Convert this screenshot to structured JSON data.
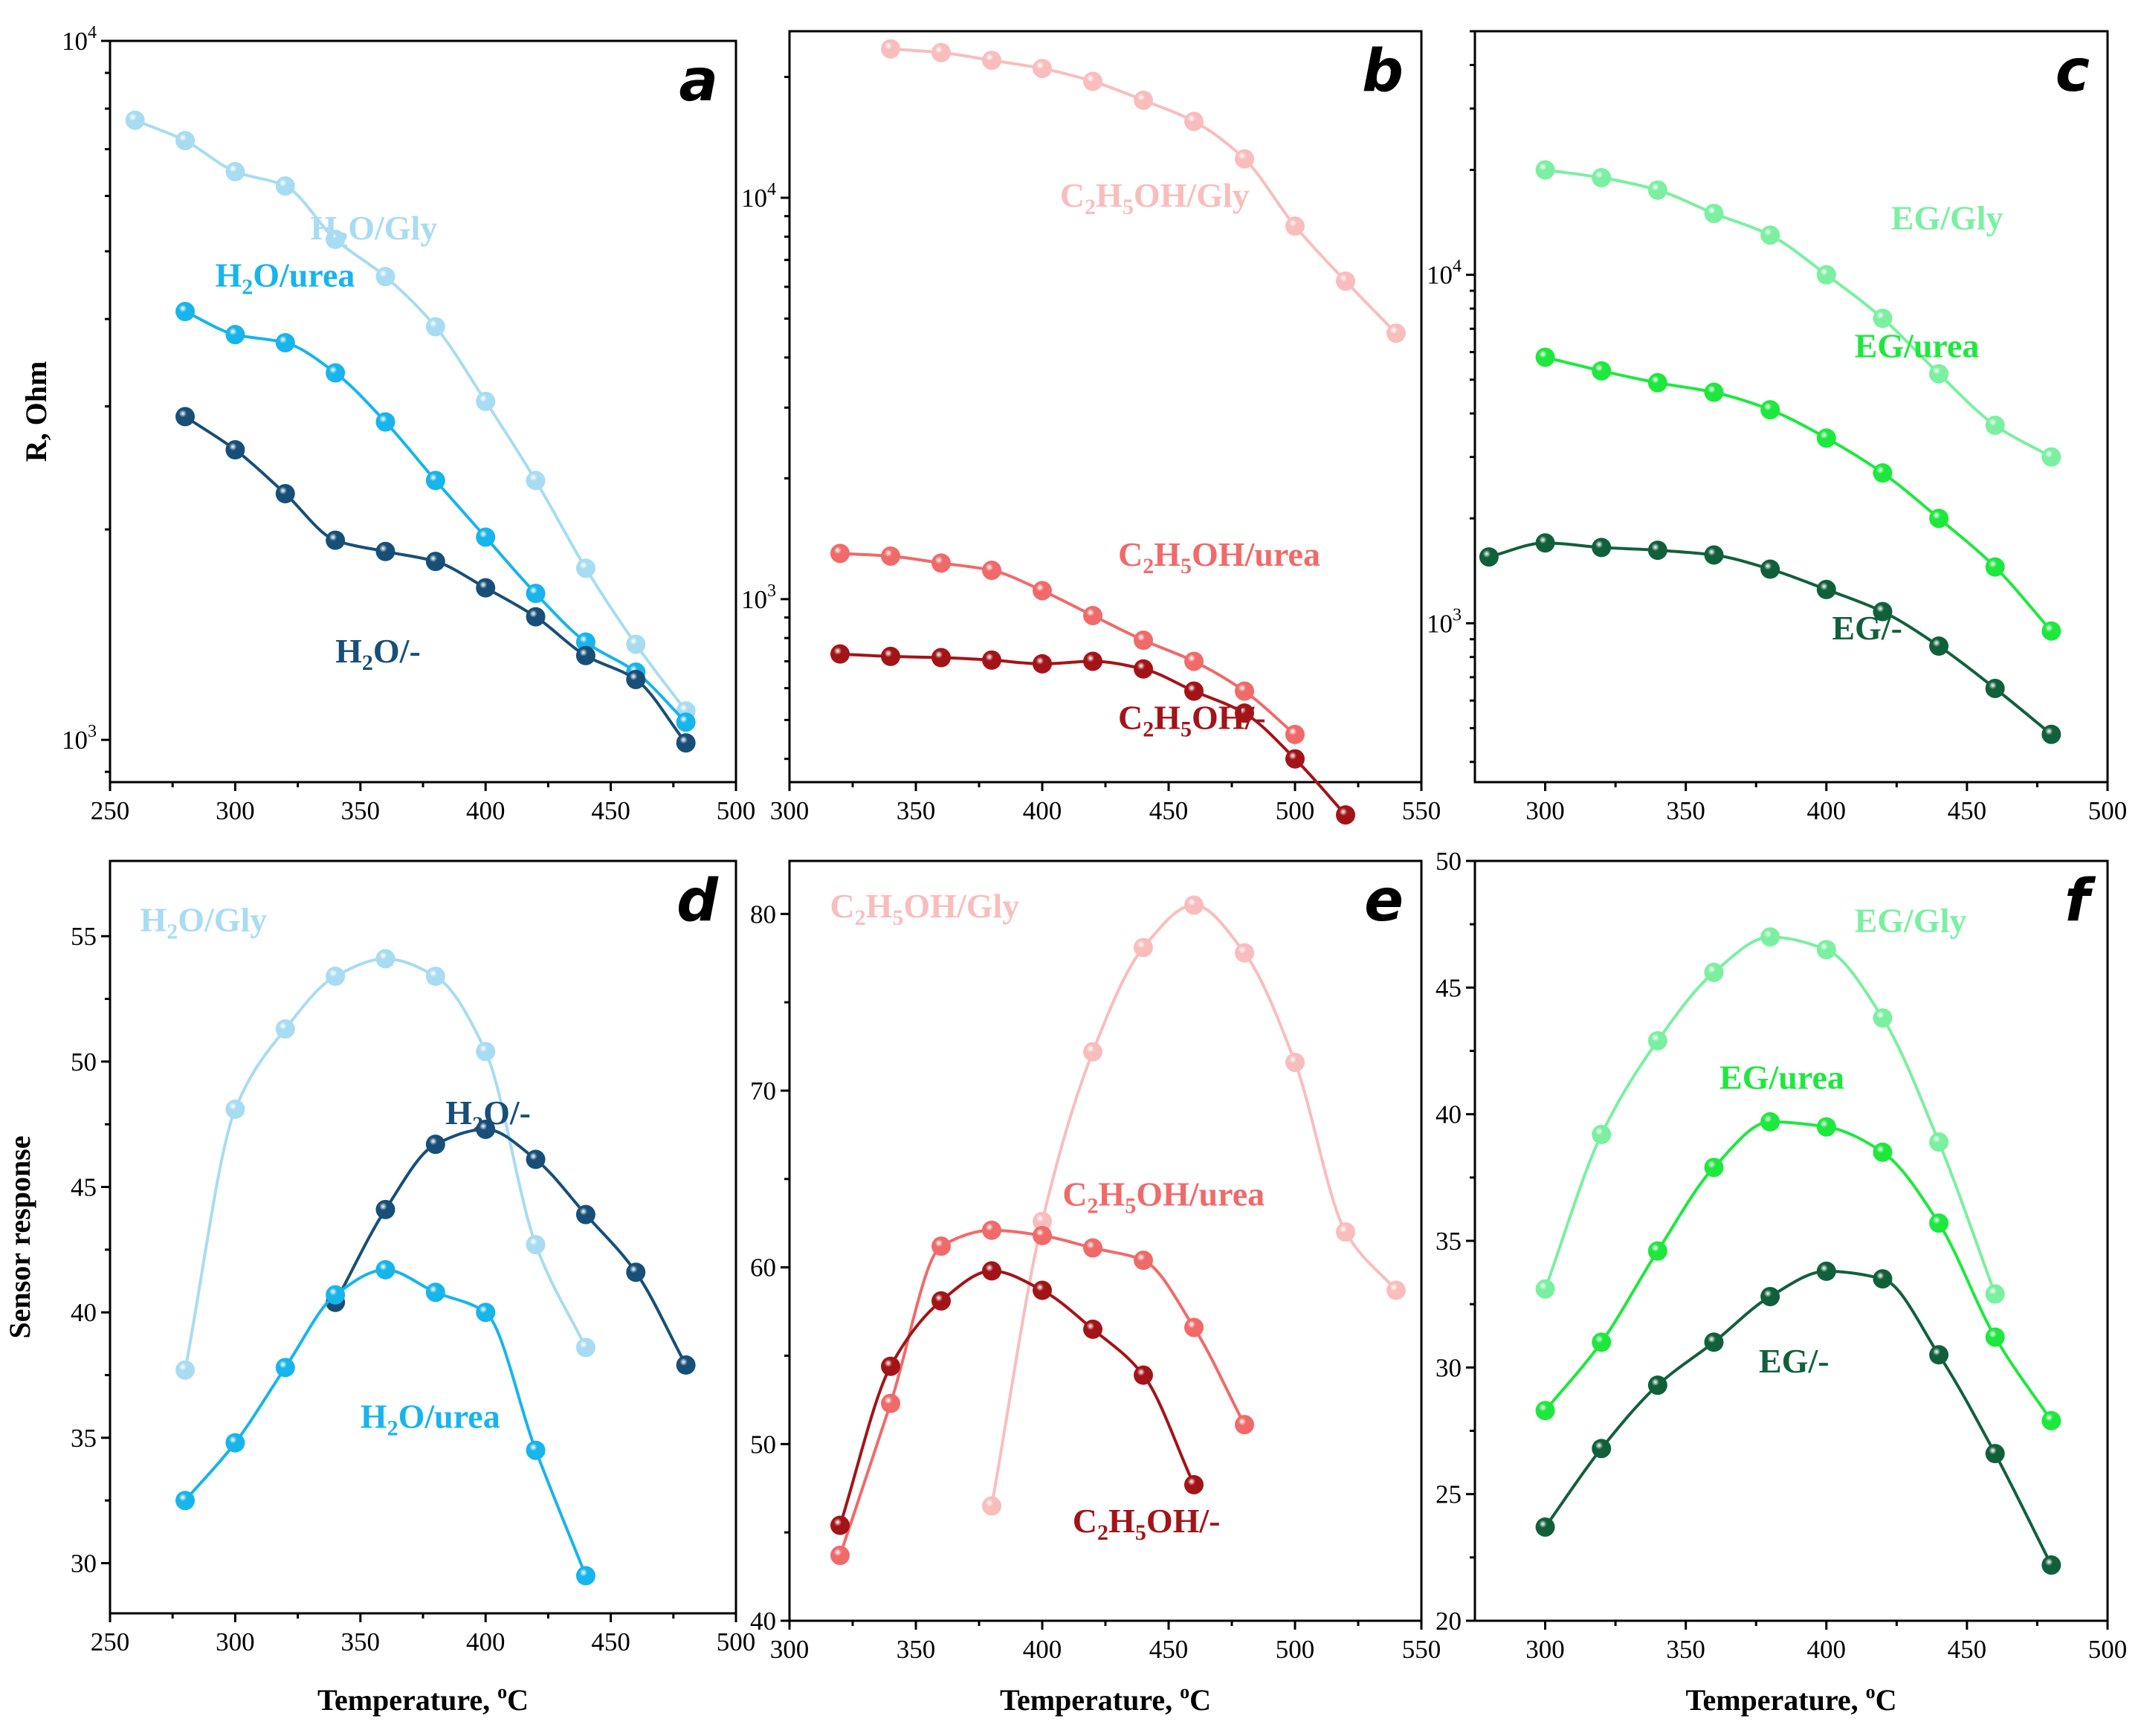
{
  "chart_data": [
    {
      "panel": "a",
      "type": "line",
      "yscale": "log",
      "xlim": [
        250,
        500
      ],
      "ylim": [
        870,
        10000
      ],
      "xticks": [
        "250",
        "300",
        "350",
        "400",
        "450",
        "500"
      ],
      "ytick_labels": [
        {
          "value": 1000,
          "base": "10",
          "exp": "3"
        },
        {
          "value": 10000,
          "base": "10",
          "exp": "4"
        }
      ],
      "xlabel": "",
      "ylabel": "R, Ohm",
      "series": [
        {
          "name": "H2O/Gly",
          "label": [
            {
              "t": "H"
            },
            {
              "t": "2",
              "sub": true
            },
            {
              "t": "O/Gly"
            }
          ],
          "color": "#a8dcf2",
          "label_at": [
            330,
            5200
          ],
          "x": [
            260,
            280,
            300,
            320,
            340,
            360,
            380,
            400,
            420,
            440,
            460,
            480
          ],
          "y": [
            7700,
            7200,
            6500,
            6200,
            5200,
            4600,
            3900,
            3050,
            2350,
            1760,
            1370,
            1100
          ]
        },
        {
          "name": "H2O/urea",
          "label": [
            {
              "t": "H"
            },
            {
              "t": "2",
              "sub": true
            },
            {
              "t": "O/urea"
            }
          ],
          "color": "#18b4ec",
          "label_at": [
            292,
            4450
          ],
          "x": [
            280,
            300,
            320,
            340,
            360,
            380,
            400,
            420,
            440,
            460,
            480
          ],
          "y": [
            4100,
            3800,
            3700,
            3350,
            2850,
            2350,
            1950,
            1620,
            1380,
            1250,
            1060
          ]
        },
        {
          "name": "H2O/-",
          "label": [
            {
              "t": "H"
            },
            {
              "t": "2",
              "sub": true
            },
            {
              "t": "O/-"
            }
          ],
          "color": "#174f78",
          "label_at": [
            340,
            1290
          ],
          "x": [
            280,
            300,
            320,
            340,
            360,
            380,
            400,
            420,
            440,
            460,
            480
          ],
          "y": [
            2900,
            2600,
            2250,
            1930,
            1860,
            1800,
            1650,
            1500,
            1320,
            1220,
            990
          ]
        }
      ]
    },
    {
      "panel": "b",
      "type": "line",
      "yscale": "log",
      "xlim": [
        300,
        550
      ],
      "ylim": [
        350,
        26000
      ],
      "xticks": [
        "300",
        "350",
        "400",
        "450",
        "500",
        "550"
      ],
      "ytick_labels": [
        {
          "value": 1000,
          "base": "10",
          "exp": "3"
        },
        {
          "value": 10000,
          "base": "10",
          "exp": "4"
        }
      ],
      "xlabel": "",
      "ylabel": "",
      "series": [
        {
          "name": "C2H5OH/Gly",
          "label": [
            {
              "t": "C"
            },
            {
              "t": "2",
              "sub": true
            },
            {
              "t": "H"
            },
            {
              "t": "5",
              "sub": true
            },
            {
              "t": "OH/Gly"
            }
          ],
          "color": "#f9bdbd",
          "label_at": [
            407,
            9500
          ],
          "x": [
            340,
            360,
            380,
            400,
            420,
            440,
            460,
            480,
            500,
            520,
            540
          ],
          "y": [
            23500,
            23000,
            22000,
            21000,
            19500,
            17500,
            15500,
            12500,
            8500,
            6200,
            4600
          ]
        },
        {
          "name": "C2H5OH/urea",
          "label": [
            {
              "t": "C"
            },
            {
              "t": "2",
              "sub": true
            },
            {
              "t": "H"
            },
            {
              "t": "5",
              "sub": true
            },
            {
              "t": "OH/urea"
            }
          ],
          "color": "#f06a6a",
          "label_at": [
            430,
            1210
          ],
          "x": [
            320,
            340,
            360,
            380,
            400,
            420,
            440,
            460,
            480,
            500
          ],
          "y": [
            1300,
            1280,
            1230,
            1180,
            1050,
            910,
            790,
            700,
            590,
            460
          ]
        },
        {
          "name": "C2H5OH/-",
          "label": [
            {
              "t": "C"
            },
            {
              "t": "2",
              "sub": true
            },
            {
              "t": "H"
            },
            {
              "t": "5",
              "sub": true
            },
            {
              "t": "OH/-"
            }
          ],
          "color": "#a31418",
          "label_at": [
            430,
            475
          ],
          "x": [
            320,
            340,
            360,
            380,
            400,
            420,
            440,
            460,
            480,
            500,
            520
          ],
          "y": [
            730,
            720,
            715,
            705,
            690,
            700,
            670,
            590,
            520,
            400,
            290
          ]
        }
      ]
    },
    {
      "panel": "c",
      "type": "line",
      "yscale": "log",
      "xlim": [
        275,
        500
      ],
      "ylim": [
        350,
        50000
      ],
      "xticks": [
        "300",
        "350",
        "400",
        "450",
        "500"
      ],
      "ytick_labels": [
        {
          "value": 1000,
          "base": "10",
          "exp": "3"
        },
        {
          "value": 10000,
          "base": "10",
          "exp": "4"
        }
      ],
      "xlabel": "",
      "ylabel": "",
      "series": [
        {
          "name": "EG/Gly",
          "label": [
            {
              "t": "EG/Gly"
            }
          ],
          "color": "#7af0a0",
          "label_at": [
            423,
            13500
          ],
          "x": [
            300,
            320,
            340,
            360,
            380,
            400,
            420,
            440,
            460,
            480
          ],
          "y": [
            20000,
            19000,
            17500,
            15000,
            13000,
            10000,
            7500,
            5200,
            3700,
            3000
          ]
        },
        {
          "name": "EG/urea",
          "label": [
            {
              "t": "EG/urea"
            }
          ],
          "color": "#1ee83e",
          "label_at": [
            410,
            5800
          ],
          "x": [
            300,
            320,
            340,
            360,
            380,
            400,
            420,
            440,
            460,
            480
          ],
          "y": [
            5800,
            5300,
            4900,
            4600,
            4100,
            3400,
            2700,
            2000,
            1450,
            950
          ]
        },
        {
          "name": "EG/-",
          "label": [
            {
              "t": "EG/-"
            }
          ],
          "color": "#11603c",
          "label_at": [
            402,
            900
          ],
          "x": [
            280,
            300,
            320,
            340,
            360,
            380,
            400,
            420,
            440,
            460,
            480
          ],
          "y": [
            1550,
            1700,
            1650,
            1620,
            1570,
            1430,
            1250,
            1080,
            860,
            650,
            480
          ]
        }
      ]
    },
    {
      "panel": "d",
      "type": "line",
      "yscale": "linear",
      "xlim": [
        250,
        500
      ],
      "ylim": [
        28,
        58
      ],
      "xticks": [
        "250",
        "300",
        "350",
        "400",
        "450",
        "500"
      ],
      "yticks": [
        "30",
        "35",
        "40",
        "45",
        "50",
        "55"
      ],
      "xlabel": "Temperature, °C",
      "ylabel": "Sensor response",
      "series": [
        {
          "name": "H2O/Gly",
          "label": [
            {
              "t": "H"
            },
            {
              "t": "2",
              "sub": true
            },
            {
              "t": "O/Gly"
            }
          ],
          "color": "#a8dcf2",
          "label_at": [
            262,
            55.2
          ],
          "x": [
            280,
            300,
            320,
            340,
            360,
            380,
            400,
            420,
            440
          ],
          "y": [
            37.7,
            48.1,
            51.3,
            53.4,
            54.1,
            53.4,
            50.4,
            42.7,
            38.6
          ]
        },
        {
          "name": "H2O/-",
          "label": [
            {
              "t": "H"
            },
            {
              "t": "2",
              "sub": true
            },
            {
              "t": "O/-"
            }
          ],
          "color": "#174f78",
          "label_at": [
            384,
            47.5
          ],
          "x": [
            340,
            360,
            380,
            400,
            420,
            440,
            460,
            480
          ],
          "y": [
            40.4,
            44.1,
            46.7,
            47.3,
            46.1,
            43.9,
            41.6,
            37.9
          ]
        },
        {
          "name": "H2O/urea",
          "label": [
            {
              "t": "H"
            },
            {
              "t": "2",
              "sub": true
            },
            {
              "t": "O/urea"
            }
          ],
          "color": "#18b4ec",
          "label_at": [
            350,
            35.4
          ],
          "x": [
            280,
            300,
            320,
            340,
            360,
            380,
            400,
            420,
            440
          ],
          "y": [
            32.5,
            34.8,
            37.8,
            40.7,
            41.7,
            40.8,
            40.0,
            34.5,
            29.5
          ]
        }
      ]
    },
    {
      "panel": "e",
      "type": "line",
      "yscale": "linear",
      "xlim": [
        300,
        550
      ],
      "ylim": [
        40,
        83
      ],
      "xticks": [
        "300",
        "350",
        "400",
        "450",
        "500",
        "550"
      ],
      "yticks": [
        "40",
        "50",
        "60",
        "70",
        "80"
      ],
      "xlabel": "Temperature, °C",
      "ylabel": "",
      "series": [
        {
          "name": "C2H5OH/Gly",
          "label": [
            {
              "t": "C"
            },
            {
              "t": "2",
              "sub": true
            },
            {
              "t": "H"
            },
            {
              "t": "5",
              "sub": true
            },
            {
              "t": "OH/Gly"
            }
          ],
          "color": "#f9bdbd",
          "label_at": [
            316,
            79.8
          ],
          "x": [
            380,
            400,
            420,
            440,
            460,
            480,
            500,
            520,
            540
          ],
          "y": [
            46.5,
            62.6,
            72.2,
            78.1,
            80.5,
            77.8,
            71.6,
            62.0,
            58.7
          ]
        },
        {
          "name": "C2H5OH/urea",
          "label": [
            {
              "t": "C"
            },
            {
              "t": "2",
              "sub": true
            },
            {
              "t": "H"
            },
            {
              "t": "5",
              "sub": true
            },
            {
              "t": "OH/urea"
            }
          ],
          "color": "#f06a6a",
          "label_at": [
            408,
            63.5
          ],
          "x": [
            320,
            340,
            360,
            380,
            400,
            420,
            440,
            460,
            480
          ],
          "y": [
            43.7,
            52.3,
            61.2,
            62.1,
            61.8,
            61.1,
            60.4,
            56.6,
            51.1
          ]
        },
        {
          "name": "C2H5OH/-",
          "label": [
            {
              "t": "C"
            },
            {
              "t": "2",
              "sub": true
            },
            {
              "t": "H"
            },
            {
              "t": "5",
              "sub": true
            },
            {
              "t": "OH/-"
            }
          ],
          "color": "#a31418",
          "label_at": [
            412,
            45.0
          ],
          "x": [
            320,
            340,
            360,
            380,
            400,
            420,
            440,
            460
          ],
          "y": [
            45.4,
            54.4,
            58.1,
            59.8,
            58.7,
            56.5,
            53.9,
            47.7
          ]
        }
      ]
    },
    {
      "panel": "f",
      "type": "line",
      "yscale": "linear",
      "xlim": [
        275,
        500
      ],
      "ylim": [
        20,
        50
      ],
      "xticks": [
        "300",
        "350",
        "400",
        "450",
        "500"
      ],
      "yticks": [
        "20",
        "25",
        "30",
        "35",
        "40",
        "45",
        "50"
      ],
      "xlabel": "Temperature, °C",
      "ylabel": "",
      "series": [
        {
          "name": "EG/Gly",
          "label": [
            {
              "t": "EG/Gly"
            }
          ],
          "color": "#7af0a0",
          "label_at": [
            410,
            47.2
          ],
          "x": [
            300,
            320,
            340,
            360,
            380,
            400,
            420,
            440,
            460
          ],
          "y": [
            33.1,
            39.2,
            42.9,
            45.6,
            47.0,
            46.5,
            43.8,
            38.9,
            32.9
          ]
        },
        {
          "name": "EG/urea",
          "label": [
            {
              "t": "EG/urea"
            }
          ],
          "color": "#1ee83e",
          "label_at": [
            362,
            41.0
          ],
          "x": [
            300,
            320,
            340,
            360,
            380,
            400,
            420,
            440,
            460,
            480
          ],
          "y": [
            28.3,
            31.0,
            34.6,
            37.9,
            39.7,
            39.5,
            38.5,
            35.7,
            31.2,
            27.9
          ]
        },
        {
          "name": "EG/-",
          "label": [
            {
              "t": "EG/-"
            }
          ],
          "color": "#11603c",
          "label_at": [
            376,
            29.8
          ],
          "x": [
            300,
            320,
            340,
            360,
            380,
            400,
            420,
            440,
            460,
            480
          ],
          "y": [
            23.7,
            26.8,
            29.3,
            31.0,
            32.8,
            33.8,
            33.5,
            30.5,
            26.6,
            22.2
          ]
        }
      ]
    }
  ]
}
